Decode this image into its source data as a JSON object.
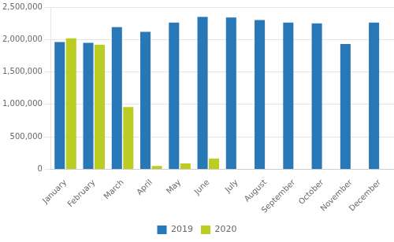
{
  "chart_data": {
    "type": "bar",
    "categories": [
      "January",
      "February",
      "March",
      "April",
      "May",
      "June",
      "July",
      "August",
      "September",
      "October",
      "November",
      "December"
    ],
    "series": [
      {
        "name": "2019",
        "color": "#2878B8",
        "values": [
          1960000,
          1950000,
          2190000,
          2120000,
          2260000,
          2350000,
          2340000,
          2300000,
          2260000,
          2250000,
          1930000,
          2260000
        ]
      },
      {
        "name": "2020",
        "color": "#BBCC22",
        "values": [
          2020000,
          1920000,
          960000,
          50000,
          90000,
          165000,
          0,
          0,
          0,
          0,
          0,
          0
        ]
      }
    ],
    "ylim": [
      0,
      2500000
    ],
    "yticks": [
      0,
      {
        "value": 500000,
        "label": "500,000"
      },
      {
        "value": 1000000,
        "label": "1,000,000"
      },
      {
        "value": 1500000,
        "label": "1,500,000"
      },
      {
        "value": 2000000,
        "label": "2,000,000"
      },
      {
        "value": 2500000,
        "label": "2,500,000"
      }
    ],
    "grid": "y",
    "legend": "bottom"
  }
}
